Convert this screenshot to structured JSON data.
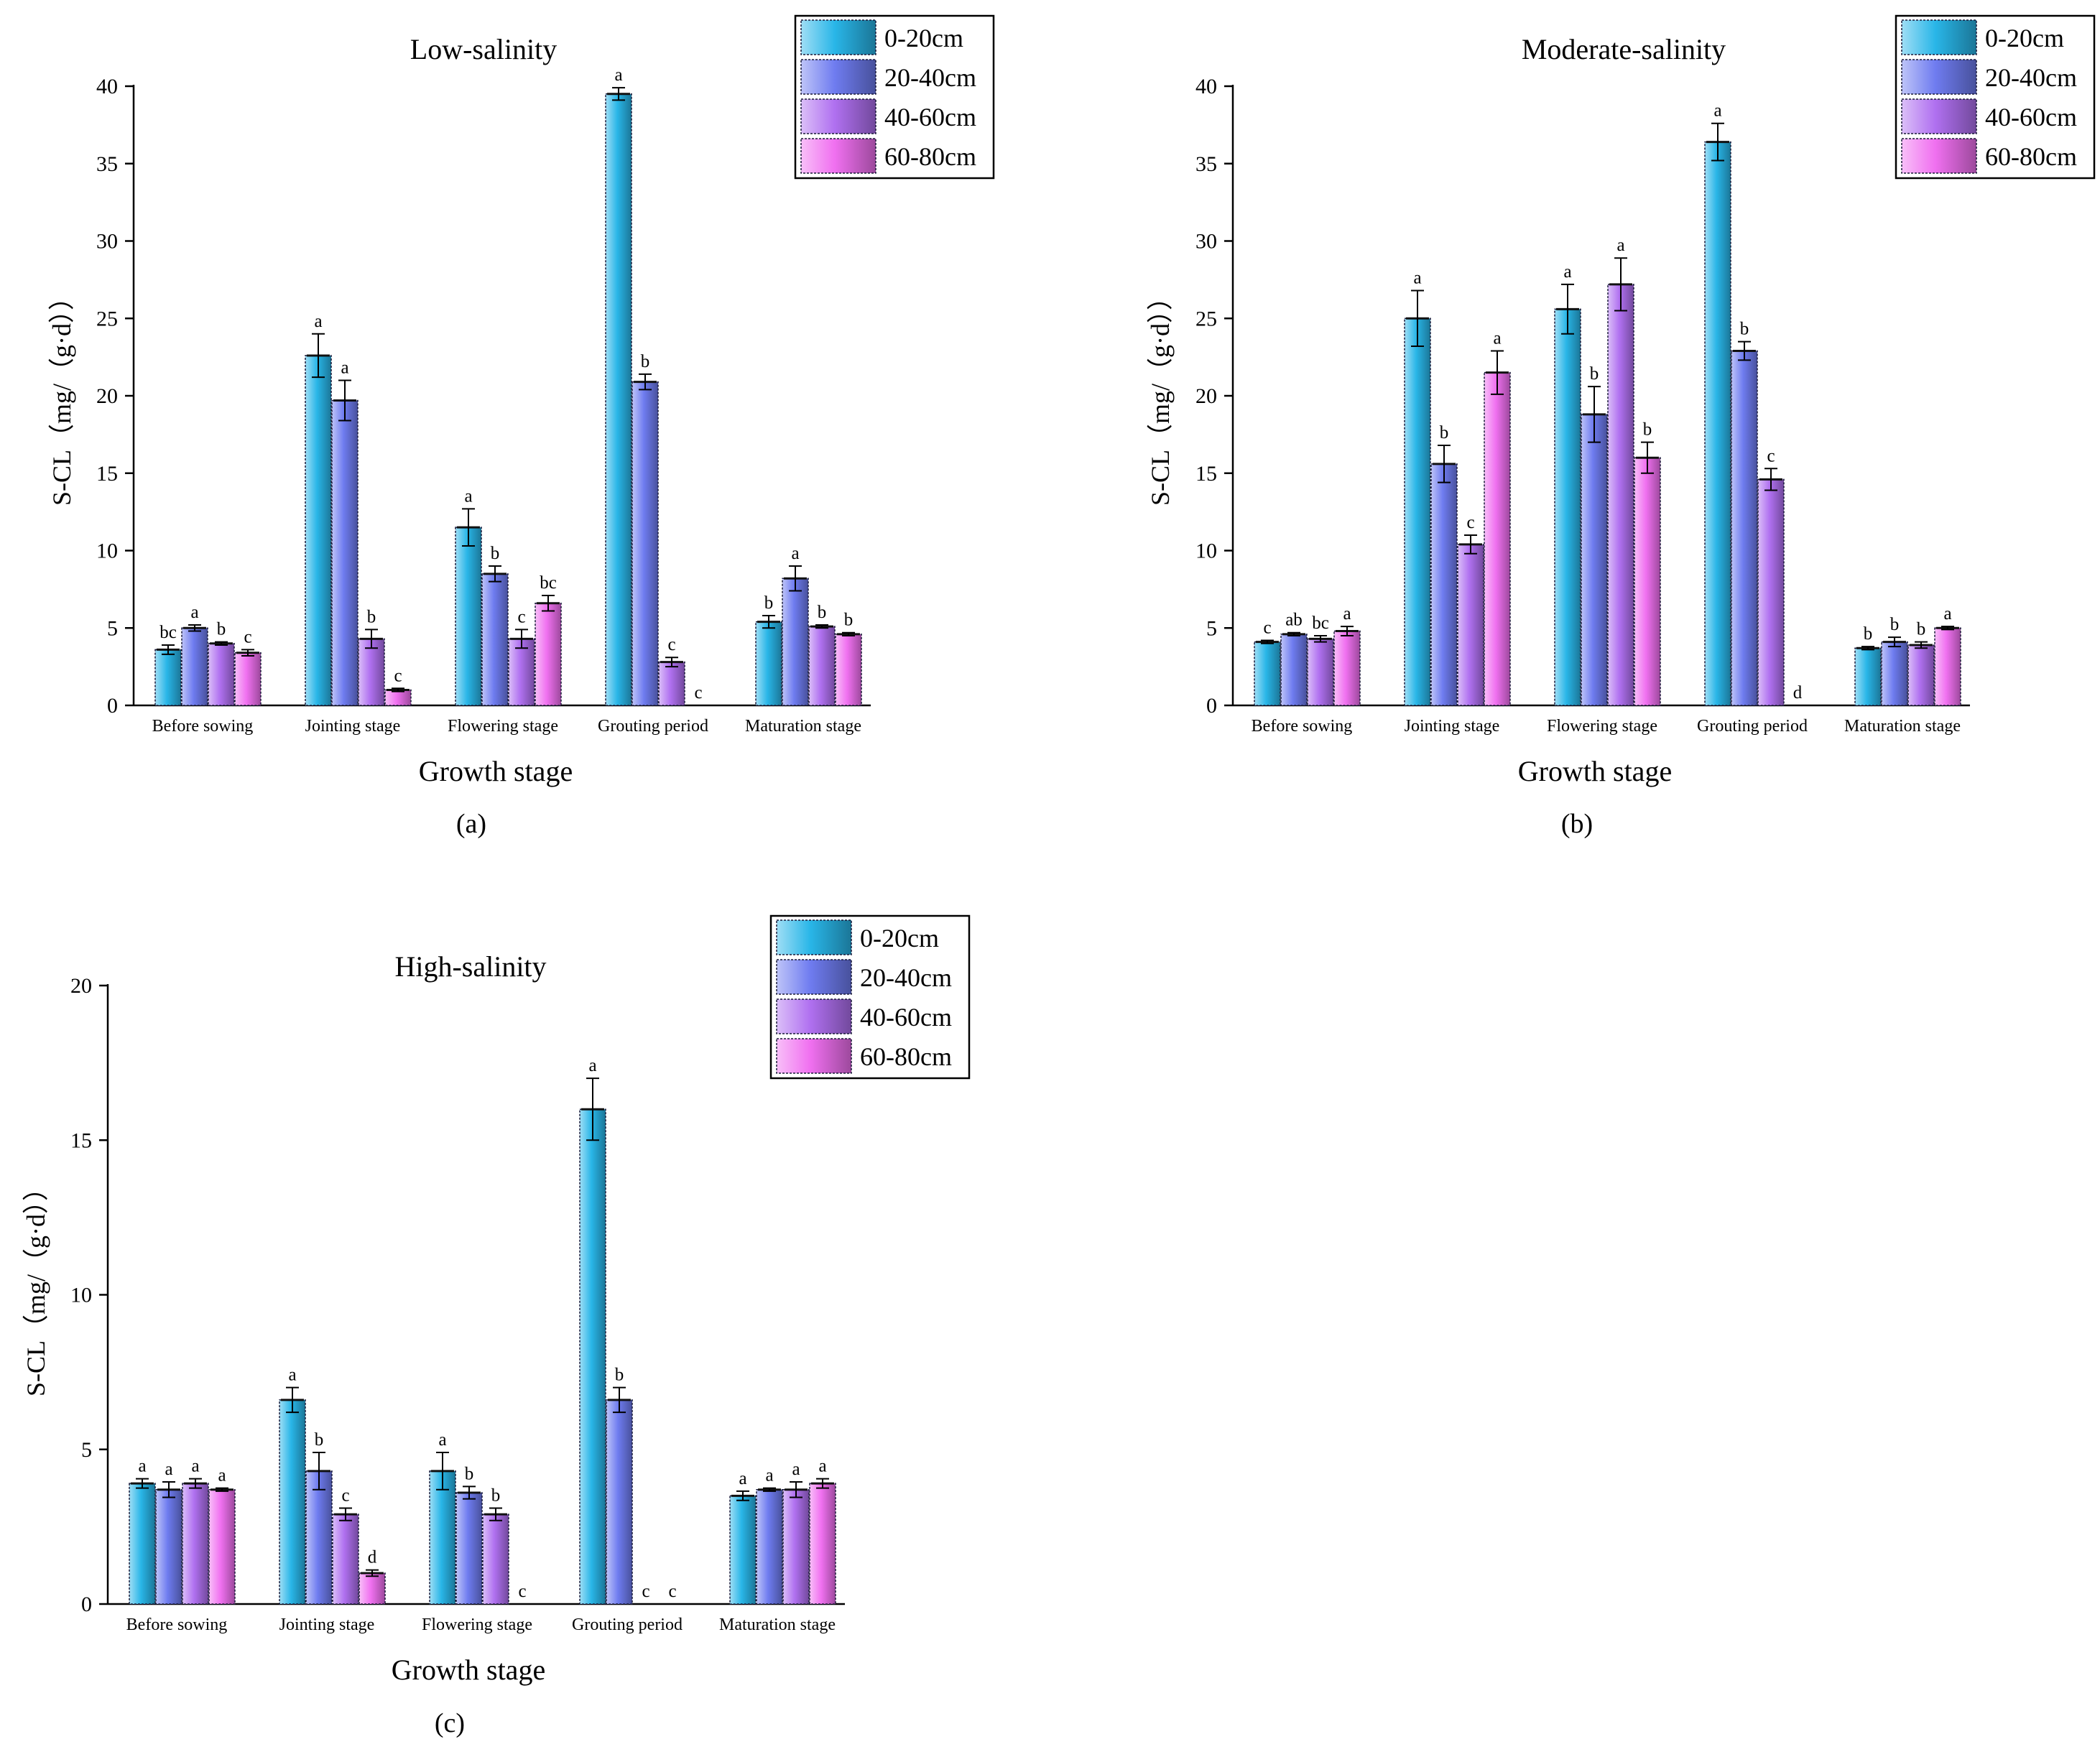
{
  "legend": [
    "0-20cm",
    "20-40cm",
    "40-60cm",
    "60-80cm"
  ],
  "colors": [
    "#29b6e8",
    "#6f7cf0",
    "#b070f0",
    "#f070f0"
  ],
  "chart_data": [
    {
      "type": "bar",
      "title": "Low-salinity",
      "panel_label": "(a)",
      "xlabel": "Growth stage",
      "ylabel": "S-CL（mg/（g·d））",
      "ylim": [
        0,
        40
      ],
      "yticks": [
        0,
        5,
        10,
        15,
        20,
        25,
        30,
        35,
        40
      ],
      "categories": [
        "Before sowing",
        "Jointing stage",
        "Flowering stage",
        "Grouting period",
        "Maturation stage"
      ],
      "series": [
        {
          "name": "0-20cm",
          "values": [
            3.6,
            22.6,
            11.5,
            39.5,
            5.4
          ],
          "errors": [
            0.3,
            1.4,
            1.2,
            0.4,
            0.4
          ],
          "letters": [
            "bc",
            "a",
            "a",
            "a",
            "b"
          ]
        },
        {
          "name": "20-40cm",
          "values": [
            5.0,
            19.7,
            8.5,
            20.9,
            8.2
          ],
          "errors": [
            0.2,
            1.3,
            0.5,
            0.5,
            0.8
          ],
          "letters": [
            "a",
            "a",
            "b",
            "b",
            "a"
          ]
        },
        {
          "name": "40-60cm",
          "values": [
            4.0,
            4.3,
            4.3,
            2.8,
            5.1
          ],
          "errors": [
            0.1,
            0.6,
            0.6,
            0.3,
            0.1
          ],
          "letters": [
            "b",
            "b",
            "c",
            "c",
            "b"
          ]
        },
        {
          "name": "60-80cm",
          "values": [
            3.4,
            1.0,
            6.6,
            0,
            4.6
          ],
          "errors": [
            0.2,
            0.1,
            0.5,
            0,
            0.1
          ],
          "letters": [
            "c",
            "c",
            "bc",
            "c",
            "b"
          ]
        }
      ]
    },
    {
      "type": "bar",
      "title": "Moderate-salinity",
      "panel_label": "(b)",
      "xlabel": "Growth stage",
      "ylabel": "S-CL（mg/（g·d））",
      "ylim": [
        0,
        40
      ],
      "yticks": [
        0,
        5,
        10,
        15,
        20,
        25,
        30,
        35,
        40
      ],
      "categories": [
        "Before sowing",
        "Jointing stage",
        "Flowering stage",
        "Grouting period",
        "Maturation stage"
      ],
      "series": [
        {
          "name": "0-20cm",
          "values": [
            4.1,
            25.0,
            25.6,
            36.4,
            3.7
          ],
          "errors": [
            0.1,
            1.8,
            1.6,
            1.2,
            0.1
          ],
          "letters": [
            "c",
            "a",
            "a",
            "a",
            "b"
          ]
        },
        {
          "name": "20-40cm",
          "values": [
            4.6,
            15.6,
            18.8,
            22.9,
            4.1
          ],
          "errors": [
            0.1,
            1.2,
            1.8,
            0.6,
            0.3
          ],
          "letters": [
            "ab",
            "b",
            "b",
            "b",
            "b"
          ]
        },
        {
          "name": "40-60cm",
          "values": [
            4.3,
            10.4,
            27.2,
            14.6,
            3.9
          ],
          "errors": [
            0.2,
            0.6,
            1.7,
            0.7,
            0.2
          ],
          "letters": [
            "bc",
            "c",
            "a",
            "c",
            "b"
          ]
        },
        {
          "name": "60-80cm",
          "values": [
            4.8,
            21.5,
            16.0,
            0,
            5.0
          ],
          "errors": [
            0.3,
            1.4,
            1.0,
            0,
            0.1
          ],
          "letters": [
            "a",
            "a",
            "b",
            "d",
            "a"
          ]
        }
      ]
    },
    {
      "type": "bar",
      "title": "High-salinity",
      "panel_label": "(c)",
      "xlabel": "Growth stage",
      "ylabel": "S-CL（mg/（g·d））",
      "ylim": [
        0,
        20
      ],
      "yticks": [
        0,
        5,
        10,
        15,
        20
      ],
      "categories": [
        "Before sowing",
        "Jointing stage",
        "Flowering stage",
        "Grouting period",
        "Maturation stage"
      ],
      "series": [
        {
          "name": "0-20cm",
          "values": [
            3.9,
            6.6,
            4.3,
            16.0,
            3.5
          ],
          "errors": [
            0.15,
            0.4,
            0.6,
            1.0,
            0.15
          ],
          "letters": [
            "a",
            "a",
            "a",
            "a",
            "a"
          ]
        },
        {
          "name": "20-40cm",
          "values": [
            3.7,
            4.3,
            3.6,
            6.6,
            3.7
          ],
          "errors": [
            0.25,
            0.6,
            0.2,
            0.4,
            0.05
          ],
          "letters": [
            "a",
            "b",
            "b",
            "b",
            "a"
          ]
        },
        {
          "name": "40-60cm",
          "values": [
            3.9,
            2.9,
            2.9,
            0,
            3.7
          ],
          "errors": [
            0.15,
            0.2,
            0.2,
            0,
            0.25
          ],
          "letters": [
            "a",
            "c",
            "b",
            "c",
            "a"
          ]
        },
        {
          "name": "60-80cm",
          "values": [
            3.7,
            1.0,
            0,
            0,
            3.9
          ],
          "errors": [
            0.05,
            0.1,
            0,
            0,
            0.15
          ],
          "letters": [
            "a",
            "d",
            "c",
            "c",
            "a"
          ]
        }
      ]
    }
  ]
}
